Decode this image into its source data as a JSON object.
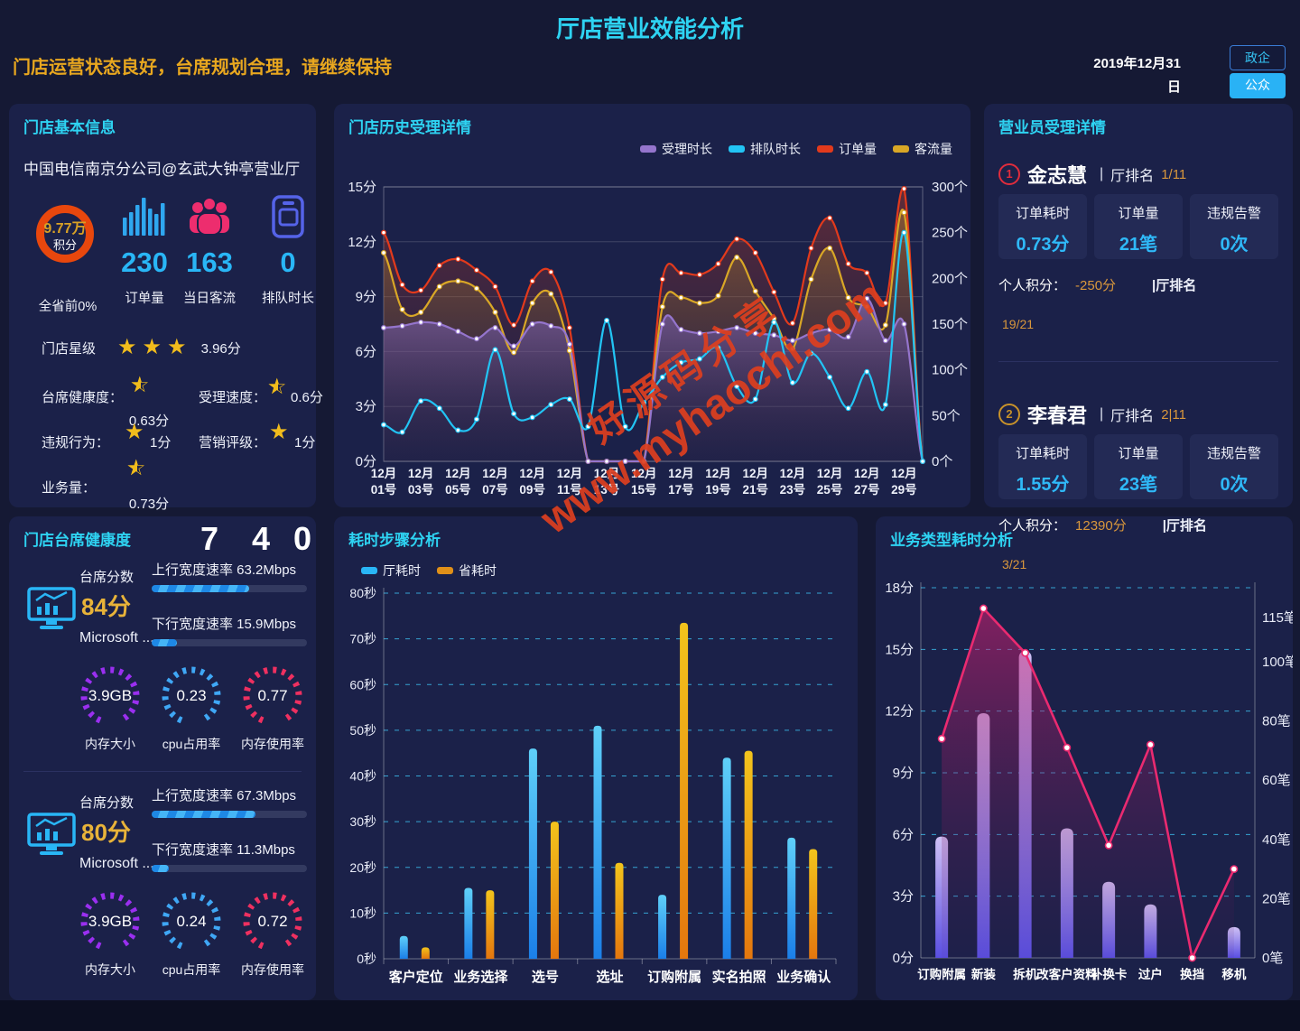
{
  "header": {
    "title": "厅店营业效能分析",
    "subtitle": "门店运营状态良好，台席规划合理，请继续保持",
    "date": "2019年12月31日",
    "btn_gov": "政企",
    "btn_public": "公众"
  },
  "watermark": {
    "line1": "好源码分享",
    "line2": "www.myhaochi.com"
  },
  "store_info": {
    "title": "门店基本信息",
    "store_name": "中国电信南京分公司@玄武大钟亭营业厅",
    "score": {
      "value": "9.77万",
      "label": "积分",
      "sub": "全省前0%",
      "ring_color": "#e8470d"
    },
    "stats": [
      {
        "icon": "bar-chart-icon",
        "value": "230",
        "label": "订单量",
        "color": "#29b6f6"
      },
      {
        "icon": "people-icon",
        "value": "163",
        "label": "当日客流",
        "color": "#ed2d6e"
      },
      {
        "icon": "phone-icon",
        "value": "0",
        "label": "排队时长",
        "color": "#5563e8"
      }
    ],
    "star_rating": {
      "label": "门店星级",
      "stars": 3,
      "score": "3.96分"
    },
    "metrics": [
      {
        "label": "台席健康度：",
        "star": "half",
        "score": "0.63分"
      },
      {
        "label": "受理速度：",
        "star": "half",
        "score": "0.6分"
      },
      {
        "label": "违规行为：",
        "star": "full",
        "score": "1分"
      },
      {
        "label": "营销评级：",
        "star": "full",
        "score": "1分"
      },
      {
        "label": "业务量：",
        "star": "half",
        "score": "0.73分"
      }
    ]
  },
  "staff_panel": {
    "title": "营业员受理详情",
    "staff": [
      {
        "rank_no": "1",
        "rank_color": "#e02c3c",
        "name": "金志慧",
        "rank_label": "厅排名",
        "rank_value": "1/11",
        "cards": [
          {
            "label": "订单耗时",
            "value": "0.73分"
          },
          {
            "label": "订单量",
            "value": "21笔"
          },
          {
            "label": "违规告警",
            "value": "0次"
          }
        ],
        "points_label": "个人积分：",
        "points_value": "-250分",
        "points_rank": "|厅排名",
        "rank_detail": "19/21"
      },
      {
        "rank_no": "2",
        "rank_color": "#c8922a",
        "name": "李春君",
        "rank_label": "厅排名",
        "rank_value": "2|11",
        "cards": [
          {
            "label": "订单耗时",
            "value": "1.55分"
          },
          {
            "label": "订单量",
            "value": "23笔"
          },
          {
            "label": "违规告警",
            "value": "0次"
          }
        ],
        "points_label": "个人积分：",
        "points_value": "12390分",
        "points_rank": "|厅排名",
        "rank_detail": "3/21"
      }
    ]
  },
  "health_panel": {
    "title": "门店台席健康度",
    "header_numbers": [
      "7",
      "4",
      "0"
    ],
    "desks": [
      {
        "score_label": "台席分数",
        "score": "84分",
        "os": "Microsoft ...",
        "bars": [
          {
            "label": "上行宽度速率 63.2Mbps",
            "pct": 63
          },
          {
            "label": "下行宽度速率 15.9Mbps",
            "pct": 16
          }
        ],
        "gauges": [
          {
            "value": "3.9GB",
            "label": "内存大小",
            "color": "#9a2ff0"
          },
          {
            "value": "0.23",
            "label": "cpu占用率",
            "color": "#3fa7f5"
          },
          {
            "value": "0.77",
            "label": "内存使用率",
            "color": "#ef3060"
          }
        ]
      },
      {
        "score_label": "台席分数",
        "score": "80分",
        "os": "Microsoft ...",
        "bars": [
          {
            "label": "上行宽度速率 67.3Mbps",
            "pct": 67
          },
          {
            "label": "下行宽度速率 11.3Mbps",
            "pct": 11
          }
        ],
        "gauges": [
          {
            "value": "3.9GB",
            "label": "内存大小",
            "color": "#9a2ff0"
          },
          {
            "value": "0.24",
            "label": "cpu占用率",
            "color": "#3fa7f5"
          },
          {
            "value": "0.72",
            "label": "内存使用率",
            "color": "#ef3060"
          }
        ]
      }
    ]
  },
  "chart_data": [
    {
      "id": "history",
      "type": "line",
      "title": "门店历史受理详情",
      "legend": [
        {
          "name": "受理时长",
          "color": "#9575cd"
        },
        {
          "name": "排队时长",
          "color": "#22c4f4"
        },
        {
          "name": "订单量",
          "color": "#e23a1c"
        },
        {
          "name": "客流量",
          "color": "#d9a726"
        }
      ],
      "x_labels": [
        "12月01号",
        "12月03号",
        "12月05号",
        "12月07号",
        "12月09号",
        "12月11号",
        "12月13号",
        "12月15号",
        "12月17号",
        "12月19号",
        "12月21号",
        "12月23号",
        "12月25号",
        "12月27号",
        "12月29号"
      ],
      "y_left": {
        "min": 0,
        "max": 15,
        "ticks": [
          "0分",
          "3分",
          "6分",
          "9分",
          "12分",
          "15分"
        ],
        "unit": "分"
      },
      "y_right": {
        "min": 0,
        "max": 300,
        "ticks": [
          "0个",
          "50个",
          "100个",
          "150个",
          "200个",
          "250个",
          "300个"
        ],
        "unit": "个"
      },
      "series": [
        {
          "name": "订单量",
          "axis": "right",
          "color": "#e23a1c",
          "area": "red",
          "values": [
            250,
            193,
            187,
            214,
            221,
            209,
            191,
            149,
            197,
            207,
            146,
            0,
            0,
            0,
            0,
            199,
            206,
            204,
            216,
            243,
            228,
            185,
            151,
            233,
            266,
            216,
            206,
            173,
            298,
            0
          ]
        },
        {
          "name": "客流量",
          "axis": "right",
          "color": "#d9a726",
          "area": "yellow",
          "values": [
            228,
            166,
            163,
            191,
            197,
            189,
            163,
            119,
            173,
            183,
            121,
            0,
            0,
            0,
            0,
            169,
            179,
            173,
            181,
            223,
            186,
            156,
            123,
            199,
            233,
            179,
            169,
            149,
            272,
            0
          ]
        },
        {
          "name": "受理时长",
          "axis": "left",
          "color": "#9575cd",
          "area": "purple",
          "values": [
            7.3,
            7.4,
            7.6,
            7.5,
            7.1,
            6.7,
            7.3,
            6.3,
            7.5,
            7.4,
            6.4,
            0,
            0,
            0,
            0,
            7.5,
            7.2,
            7.0,
            7.1,
            7.3,
            7.0,
            6.9,
            6.6,
            7.0,
            7.2,
            6.8,
            8.9,
            6.6,
            7.5,
            0
          ]
        },
        {
          "name": "排队时长",
          "axis": "left",
          "color": "#22c4f4",
          "area": null,
          "values": [
            2.0,
            1.6,
            3.3,
            2.9,
            1.7,
            2.3,
            6.1,
            2.6,
            2.4,
            3.1,
            3.4,
            1.9,
            7.7,
            1.9,
            3.2,
            4.6,
            5.4,
            5.6,
            6.2,
            4.1,
            3.4,
            7.6,
            4.3,
            5.9,
            4.6,
            2.9,
            4.9,
            3.1,
            12.5,
            0
          ]
        }
      ]
    },
    {
      "id": "steps",
      "type": "bar",
      "title": "耗时步骤分析",
      "legend": [
        {
          "name": "厅耗时",
          "color": "#29b6f6"
        },
        {
          "name": "省耗时",
          "color": "#e09018"
        }
      ],
      "categories": [
        "客户定位",
        "业务选择",
        "选号",
        "选址",
        "订购附属",
        "实名拍照",
        "业务确认"
      ],
      "y": {
        "min": 0,
        "max": 80,
        "tick_step": 10,
        "unit": "秒"
      },
      "series": [
        {
          "name": "厅耗时",
          "values": [
            5,
            15.5,
            46,
            51,
            14,
            44,
            26.5
          ]
        },
        {
          "name": "省耗时",
          "values": [
            2.5,
            15,
            30,
            21,
            73.5,
            45.5,
            24
          ]
        }
      ]
    },
    {
      "id": "types",
      "type": "bar-line",
      "title": "业务类型耗时分析",
      "categories": [
        "订购附属",
        "新装",
        "拆机",
        "改客户资料",
        "补换卡",
        "过户",
        "换挡",
        "移机"
      ],
      "y_left": {
        "min": 0,
        "max": 18,
        "tick_step": 3,
        "unit": "分"
      },
      "y_right": {
        "max": 125,
        "ticks": [
          115,
          100,
          80,
          60,
          40,
          20,
          0
        ],
        "unit": "笔"
      },
      "bars": {
        "name": "耗时",
        "values": [
          5.9,
          11.9,
          14.9,
          6.3,
          3.7,
          2.6,
          0,
          1.5
        ]
      },
      "line": {
        "name": "订单量",
        "color": "#ea2a70",
        "values": [
          74,
          118,
          103,
          71,
          38,
          72,
          0,
          30
        ]
      }
    }
  ]
}
